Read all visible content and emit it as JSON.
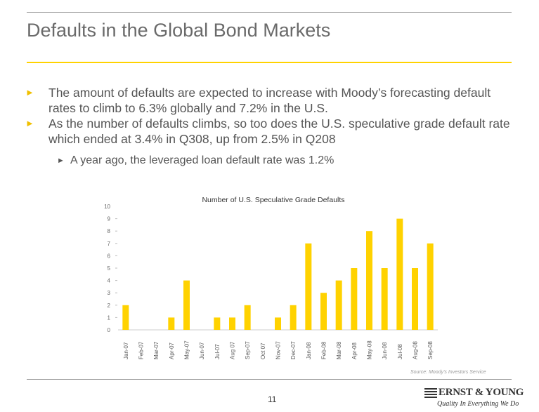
{
  "slide": {
    "title": "Defaults in the Global Bond Markets",
    "bullets": [
      "The amount of defaults are expected to increase with Moody’s forecasting default rates to climb to 6.3% globally and 7.2% in the U.S.",
      "As the number of defaults climbs, so too does the U.S. speculative grade default rate which ended at 3.4% in Q308, up from 2.5% in Q208"
    ],
    "sub_bullet": "A year ago, the leveraged loan default rate was 1.2%",
    "bullet_icon": "triangle-right-icon",
    "accent_color": "#ffd200",
    "source_note": "Source: Moody's Investors Service",
    "page_number": "11"
  },
  "logo": {
    "name": "ERNST & YOUNG",
    "tagline": "Quality In Everything We Do"
  },
  "chart_data": {
    "type": "bar",
    "title": "Number of U.S. Speculative Grade Defaults",
    "xlabel": "",
    "ylabel": "",
    "ylim": [
      0,
      10
    ],
    "yticks": [
      "0",
      "1",
      "2",
      "3",
      "4",
      "5",
      "6",
      "7",
      "8",
      "9",
      "10"
    ],
    "categories": [
      "Jan-07",
      "Feb-07",
      "Mar-07",
      "Apr-07",
      "May-07",
      "Jun-07",
      "Jul-07",
      "Aug 07",
      "Sep-07",
      "Oct 07",
      "Nov-07",
      "Dec-07",
      "Jan-08",
      "Feb-08",
      "Mar-08",
      "Apr-08",
      "May-08",
      "Jun-08",
      "Jul-08",
      "Aug-08",
      "Sep-08"
    ],
    "values": [
      2,
      0,
      0,
      1,
      4,
      0,
      1,
      1,
      2,
      0,
      1,
      2,
      7,
      3,
      4,
      5,
      8,
      5,
      9,
      5,
      7
    ],
    "bar_color": "#ffd200",
    "grid": false
  }
}
